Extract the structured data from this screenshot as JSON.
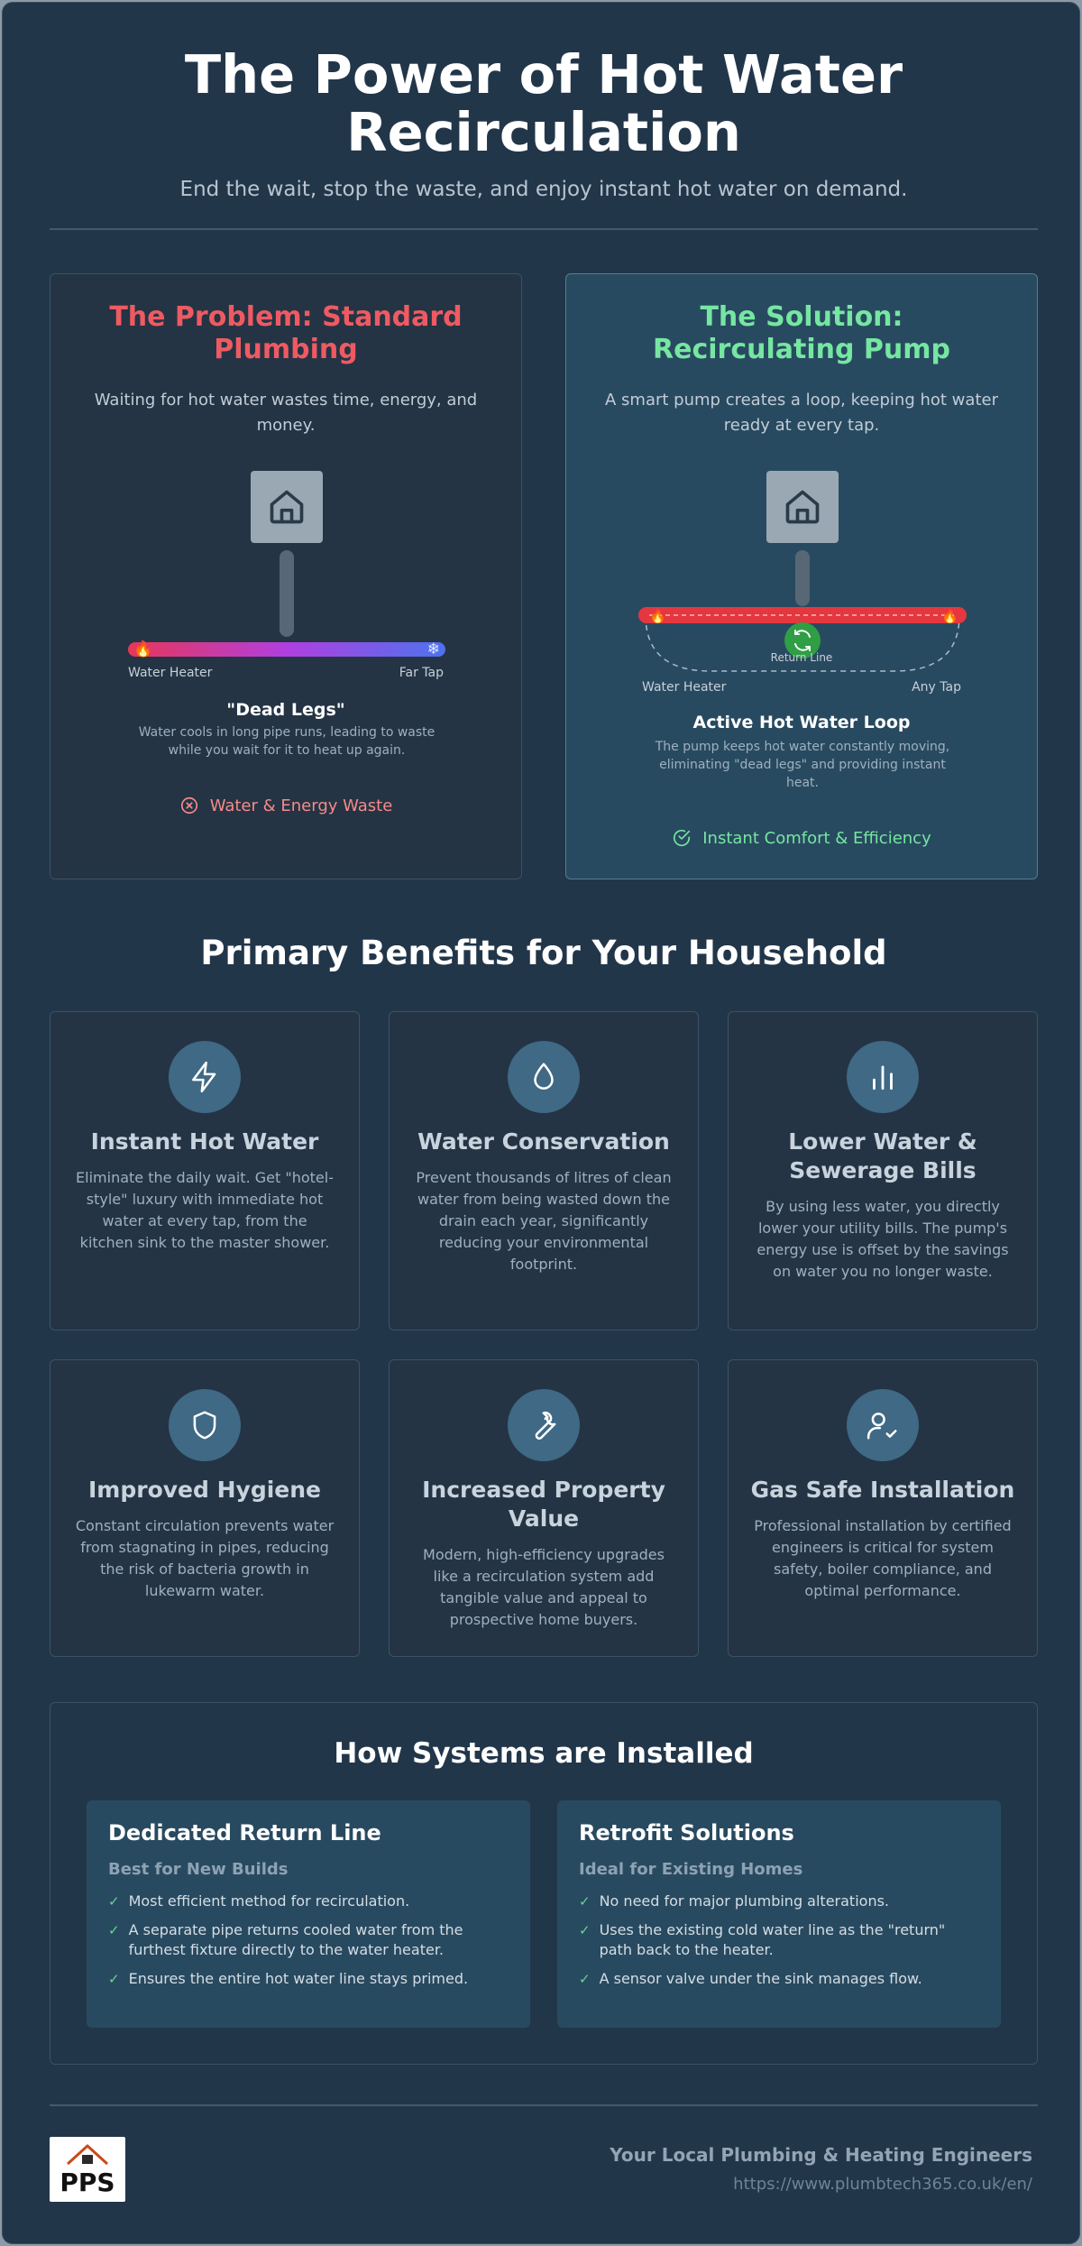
{
  "header": {
    "title": "The Power of Hot Water Recirculation",
    "subtitle": "End the wait, stop the waste, and enjoy instant hot water on demand."
  },
  "problem": {
    "title": "The Problem: Standard Plumbing",
    "description": "Waiting for hot water wastes time, energy, and money.",
    "label_left": "Water Heater",
    "label_right": "Far Tap",
    "diagram_title": "\"Dead Legs\"",
    "diagram_desc": "Water cools in long pipe runs, leading to waste while you wait for it to heat up again.",
    "status": "Water & Energy Waste",
    "status_color": "#f58a8a"
  },
  "solution": {
    "title": "The Solution: Recirculating Pump",
    "description": "A smart pump creates a loop, keeping hot water ready at every tap.",
    "return_label": "Return Line",
    "label_left": "Water Heater",
    "label_right": "Any Tap",
    "diagram_title": "Active Hot Water Loop",
    "diagram_desc": "The pump keeps hot water constantly moving, eliminating \"dead legs\" and providing instant heat.",
    "status": "Instant Comfort & Efficiency",
    "status_color": "#76e6a2"
  },
  "benefits": {
    "title": "Primary Benefits for Your Household",
    "items": [
      {
        "icon": "lightning-icon",
        "title": "Instant Hot Water",
        "desc": "Eliminate the daily wait. Get \"hotel-style\" luxury with immediate hot water at every tap, from the kitchen sink to the master shower."
      },
      {
        "icon": "droplet-icon",
        "title": "Water Conservation",
        "desc": "Prevent thousands of litres of clean water from being wasted down the drain each year, significantly reducing your environmental footprint."
      },
      {
        "icon": "bar-chart-icon",
        "title": "Lower Water & Sewerage Bills",
        "desc": "By using less water, you directly lower your utility bills. The pump's energy use is offset by the savings on water you no longer waste."
      },
      {
        "icon": "shield-icon",
        "title": "Improved Hygiene",
        "desc": "Constant circulation prevents water from stagnating in pipes, reducing the risk of bacteria growth in lukewarm water."
      },
      {
        "icon": "wrench-icon",
        "title": "Increased Property Value",
        "desc": "Modern, high-efficiency upgrades like a recirculation system add tangible value and appeal to prospective home buyers."
      },
      {
        "icon": "user-check-icon",
        "title": "Gas Safe Installation",
        "desc": "Professional installation by certified engineers is critical for system safety, boiler compliance, and optimal performance."
      }
    ]
  },
  "install": {
    "title": "How Systems are Installed",
    "options": [
      {
        "title": "Dedicated Return Line",
        "subtitle": "Best for New Builds",
        "points": [
          "Most efficient method for recirculation.",
          "A separate pipe returns cooled water from the furthest fixture directly to the water heater.",
          "Ensures the entire hot water line stays primed."
        ]
      },
      {
        "title": "Retrofit Solutions",
        "subtitle": "Ideal for Existing Homes",
        "points": [
          "No need for major plumbing alterations.",
          "Uses the existing cold water line as the \"return\" path back to the heater.",
          "A sensor valve under the sink manages flow."
        ]
      }
    ]
  },
  "footer": {
    "logo_text": "PPS",
    "company": "Your Local Plumbing & Heating Engineers",
    "url": "https://www.plumbtech365.co.uk/en/"
  }
}
